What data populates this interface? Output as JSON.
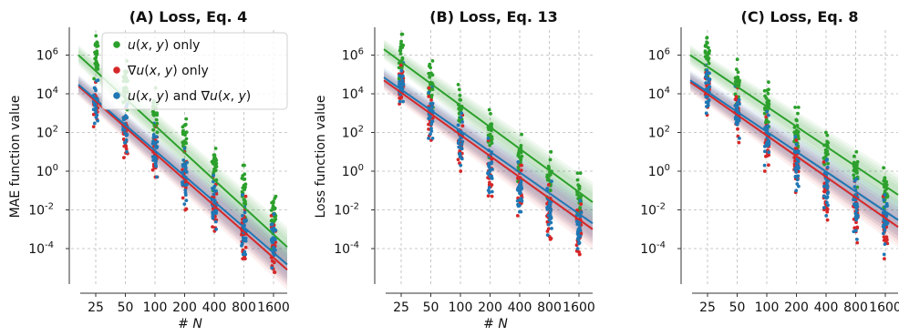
{
  "chart_data": [
    {
      "type": "scatter",
      "title": "(A) Loss, Eq. 4",
      "xlabel": "# N",
      "ylabel": "MAE function value",
      "yscale": "log",
      "ylim": [
        1e-06,
        50000000.0
      ],
      "categories": [
        "25",
        "50",
        "100",
        "200",
        "400",
        "800",
        "1600"
      ],
      "yticks": [
        "10^6",
        "10^4",
        "10^2",
        "10^0",
        "10^-2",
        "10^-4"
      ],
      "grid": true,
      "legend_position": "top-left",
      "series": [
        {
          "name": "u(x, y) only",
          "color": "#2ca02c",
          "medians": [
            800000,
            30000,
            1000,
            60,
            2,
            0.15,
            0.005
          ],
          "mins": [
            60000,
            1500,
            50,
            3,
            0.1,
            0.004,
            0.0001
          ],
          "maxs": [
            10000000,
            500000,
            20000,
            500,
            15,
            2,
            0.05
          ],
          "fit_start": 1000000,
          "fit_end": 0.00012
        },
        {
          "name": "∇u(x, y) only",
          "color": "#d62728",
          "medians": [
            3000,
            100,
            8,
            0.4,
            0.02,
            0.0008,
            0.0002
          ],
          "mins": [
            200,
            5,
            0.5,
            0.01,
            0.0008,
            3e-05,
            6e-06
          ],
          "maxs": [
            40000,
            2000,
            200,
            10,
            0.5,
            0.05,
            0.005
          ],
          "fit_start": 25000,
          "fit_end": 8e-06
        },
        {
          "name": "u(x, y) and ∇u(x, y)",
          "color": "#1f77b4",
          "medians": [
            5000,
            150,
            10,
            0.5,
            0.03,
            0.001,
            0.0003
          ],
          "mins": [
            300,
            10,
            0.5,
            0.02,
            0.001,
            5e-05,
            1e-05
          ],
          "maxs": [
            50000,
            3000,
            300,
            15,
            0.6,
            0.06,
            0.006
          ],
          "fit_start": 30000,
          "fit_end": 1.5e-05
        }
      ]
    },
    {
      "type": "scatter",
      "title": "(B) Loss, Eq. 13",
      "xlabel": "# N",
      "ylabel": "Loss function value",
      "yscale": "log",
      "ylim": [
        1e-06,
        50000000.0
      ],
      "categories": [
        "25",
        "50",
        "100",
        "200",
        "400",
        "800",
        "1600"
      ],
      "yticks": [
        "10^6",
        "10^4",
        "10^2",
        "10^0",
        "10^-2",
        "10^-4"
      ],
      "grid": true,
      "series": [
        {
          "name": "u(x, y) only",
          "color": "#2ca02c",
          "medians": [
            600000,
            30000,
            1500,
            80,
            5,
            0.5,
            0.05
          ],
          "mins": [
            30000,
            2000,
            100,
            5,
            0.3,
            0.03,
            0.002
          ],
          "maxs": [
            12000000,
            500000,
            30000,
            1500,
            80,
            10,
            0.8
          ],
          "fit_start": 2000000,
          "fit_end": 0.025
        },
        {
          "name": "∇u(x, y) only",
          "color": "#d62728",
          "medians": [
            20000,
            600,
            30,
            1,
            0.08,
            0.005,
            0.0005
          ],
          "mins": [
            3000,
            40,
            1,
            0.05,
            0.005,
            0.0003,
            5e-05
          ],
          "maxs": [
            300000,
            20000,
            800,
            40,
            2,
            0.2,
            0.02
          ],
          "fit_start": 50000,
          "fit_end": 0.001
        },
        {
          "name": "u(x, y) and ∇u(x, y)",
          "color": "#1f77b4",
          "medians": [
            25000,
            800,
            40,
            1.5,
            0.1,
            0.007,
            0.0008
          ],
          "mins": [
            4000,
            50,
            2,
            0.08,
            0.008,
            0.0005,
            0.0001
          ],
          "maxs": [
            400000,
            25000,
            1000,
            50,
            3,
            0.3,
            0.03
          ],
          "fit_start": 70000,
          "fit_end": 0.002
        }
      ]
    },
    {
      "type": "scatter",
      "title": "(C) Loss, Eq. 8",
      "xlabel": "",
      "ylabel": "",
      "yscale": "log",
      "ylim": [
        1e-06,
        50000000.0
      ],
      "categories": [
        "25",
        "50",
        "100",
        "200",
        "400",
        "800",
        "1600"
      ],
      "yticks": [
        "10^6",
        "10^4",
        "10^2",
        "10^0",
        "10^-2",
        "10^-4"
      ],
      "grid": true,
      "series": [
        {
          "name": "u(x, y) only",
          "color": "#2ca02c",
          "medians": [
            1000000,
            50000,
            3000,
            150,
            10,
            1,
            0.1
          ],
          "mins": [
            60000,
            3000,
            200,
            10,
            0.5,
            0.05,
            0.005
          ],
          "maxs": [
            8000000,
            600000,
            40000,
            2000,
            100,
            10,
            1.5
          ],
          "fit_start": 1000000,
          "fit_end": 0.06
        },
        {
          "name": "∇u(x, y) only",
          "color": "#d62728",
          "medians": [
            20000,
            800,
            40,
            2,
            0.1,
            0.008,
            0.001
          ],
          "mins": [
            800,
            30,
            1,
            0.08,
            0.003,
            0.0002,
            3e-05
          ],
          "maxs": [
            300000,
            20000,
            800,
            40,
            3,
            0.3,
            0.05
          ],
          "fit_start": 40000,
          "fit_end": 0.0013
        },
        {
          "name": "u(x, y) and ∇u(x, y)",
          "color": "#1f77b4",
          "medians": [
            25000,
            1000,
            60,
            3,
            0.2,
            0.01,
            0.002
          ],
          "mins": [
            1000,
            50,
            2,
            0.1,
            0.005,
            0.0003,
            5e-05
          ],
          "maxs": [
            300000,
            25000,
            1200,
            60,
            4,
            0.4,
            0.06
          ],
          "fit_start": 50000,
          "fit_end": 0.003
        }
      ]
    }
  ]
}
